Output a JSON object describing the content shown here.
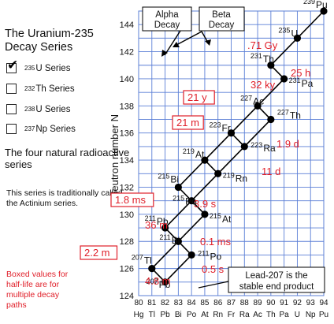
{
  "title": "The Uranium-235 Decay Series",
  "series_selector": [
    {
      "mass": "235",
      "label": "U Series",
      "checked": true
    },
    {
      "mass": "232",
      "label": "Th Series",
      "checked": false
    },
    {
      "mass": "238",
      "label": "U Series",
      "checked": false
    },
    {
      "mass": "237",
      "label": "Np Series",
      "checked": false
    }
  ],
  "four_series_note": "The four natural radioactive series",
  "actinium_note": "This series is traditionally called the Actinium series.",
  "boxed_note": "Boxed values for half-life are for multiple decay paths",
  "alpha_label": "Alpha Decay",
  "beta_label": "Beta Decay",
  "lead_note": "Lead-207 is the stable end product",
  "colors": {
    "grid": "#5b7fd6",
    "halflife": "#e0202a",
    "line": "#000000"
  },
  "chart_data": {
    "type": "scatter",
    "xlabel": "",
    "ylabel": "Neutron number N",
    "xlim": [
      80,
      94
    ],
    "ylim": [
      124,
      145
    ],
    "grid": true,
    "x_ticks": [
      "80",
      "81",
      "82",
      "83",
      "84",
      "85",
      "86",
      "87",
      "88",
      "89",
      "90",
      "91",
      "92",
      "93",
      "94"
    ],
    "element_ticks": [
      "Hg",
      "Tl",
      "Pb",
      "Bi",
      "Po",
      "At",
      "Rn",
      "Fr",
      "Ra",
      "Ac",
      "Th",
      "Pa",
      "U",
      "Np",
      "Pu"
    ],
    "y_ticks": [
      124,
      126,
      128,
      130,
      132,
      134,
      136,
      138,
      140,
      142,
      144
    ],
    "nuclides": [
      {
        "z": 94,
        "n": 145,
        "mass": "239",
        "symbol": "Pu"
      },
      {
        "z": 92,
        "n": 143,
        "mass": "235",
        "symbol": "U"
      },
      {
        "z": 90,
        "n": 141,
        "mass": "231",
        "symbol": "Th"
      },
      {
        "z": 91,
        "n": 140,
        "mass": "231",
        "symbol": "Pa"
      },
      {
        "z": 89,
        "n": 138,
        "mass": "227",
        "symbol": "Ac"
      },
      {
        "z": 90,
        "n": 137,
        "mass": "227",
        "symbol": "Th"
      },
      {
        "z": 87,
        "n": 136,
        "mass": "223",
        "symbol": "Fr"
      },
      {
        "z": 88,
        "n": 135,
        "mass": "223",
        "symbol": "Ra"
      },
      {
        "z": 85,
        "n": 134,
        "mass": "219",
        "symbol": "At"
      },
      {
        "z": 86,
        "n": 133,
        "mass": "219",
        "symbol": "Rn"
      },
      {
        "z": 83,
        "n": 132,
        "mass": "215",
        "symbol": "Bi"
      },
      {
        "z": 84,
        "n": 131,
        "mass": "215",
        "symbol": "Po"
      },
      {
        "z": 82,
        "n": 129,
        "mass": "211",
        "symbol": "Pb"
      },
      {
        "z": 85,
        "n": 130,
        "mass": "215",
        "symbol": "At"
      },
      {
        "z": 83,
        "n": 128,
        "mass": "211",
        "symbol": "Bi"
      },
      {
        "z": 81,
        "n": 126,
        "mass": "207",
        "symbol": "Tl"
      },
      {
        "z": 84,
        "n": 127,
        "mass": "211",
        "symbol": "Po"
      },
      {
        "z": 82,
        "n": 125,
        "mass": "207",
        "symbol": "Pb"
      }
    ],
    "decays": [
      {
        "from": [
          94,
          145
        ],
        "to": [
          92,
          143
        ]
      },
      {
        "from": [
          92,
          143
        ],
        "to": [
          90,
          141
        ]
      },
      {
        "from": [
          90,
          141
        ],
        "to": [
          91,
          140
        ]
      },
      {
        "from": [
          91,
          140
        ],
        "to": [
          89,
          138
        ]
      },
      {
        "from": [
          89,
          138
        ],
        "to": [
          90,
          137
        ]
      },
      {
        "from": [
          89,
          138
        ],
        "to": [
          87,
          136
        ]
      },
      {
        "from": [
          90,
          137
        ],
        "to": [
          88,
          135
        ]
      },
      {
        "from": [
          87,
          136
        ],
        "to": [
          88,
          135
        ]
      },
      {
        "from": [
          87,
          136
        ],
        "to": [
          85,
          134
        ]
      },
      {
        "from": [
          88,
          135
        ],
        "to": [
          86,
          133
        ]
      },
      {
        "from": [
          85,
          134
        ],
        "to": [
          86,
          133
        ]
      },
      {
        "from": [
          85,
          134
        ],
        "to": [
          83,
          132
        ]
      },
      {
        "from": [
          86,
          133
        ],
        "to": [
          84,
          131
        ]
      },
      {
        "from": [
          83,
          132
        ],
        "to": [
          84,
          131
        ]
      },
      {
        "from": [
          84,
          131
        ],
        "to": [
          82,
          129
        ]
      },
      {
        "from": [
          84,
          131
        ],
        "to": [
          85,
          130
        ]
      },
      {
        "from": [
          85,
          130
        ],
        "to": [
          83,
          128
        ]
      },
      {
        "from": [
          82,
          129
        ],
        "to": [
          83,
          128
        ]
      },
      {
        "from": [
          83,
          128
        ],
        "to": [
          81,
          126
        ]
      },
      {
        "from": [
          83,
          128
        ],
        "to": [
          84,
          127
        ]
      },
      {
        "from": [
          81,
          126
        ],
        "to": [
          82,
          125
        ]
      },
      {
        "from": [
          84,
          127
        ],
        "to": [
          82,
          125
        ]
      }
    ],
    "half_lives": [
      {
        "text": ".71 Gy",
        "boxed": false
      },
      {
        "text": "25 h",
        "boxed": false
      },
      {
        "text": "32 ky",
        "boxed": false
      },
      {
        "text": "21 y",
        "boxed": true
      },
      {
        "text": "21 m",
        "boxed": true
      },
      {
        "text": "1.9 d",
        "boxed": false
      },
      {
        "text": "11 d",
        "boxed": false
      },
      {
        "text": "1.8 ms",
        "boxed": true
      },
      {
        "text": "3.9 s",
        "boxed": false
      },
      {
        "text": "36 m",
        "boxed": false
      },
      {
        "text": "0.1 ms",
        "boxed": false
      },
      {
        "text": "2.2 m",
        "boxed": true
      },
      {
        "text": "0.5 s",
        "boxed": false
      },
      {
        "text": "4.8 m",
        "boxed": false
      }
    ]
  }
}
